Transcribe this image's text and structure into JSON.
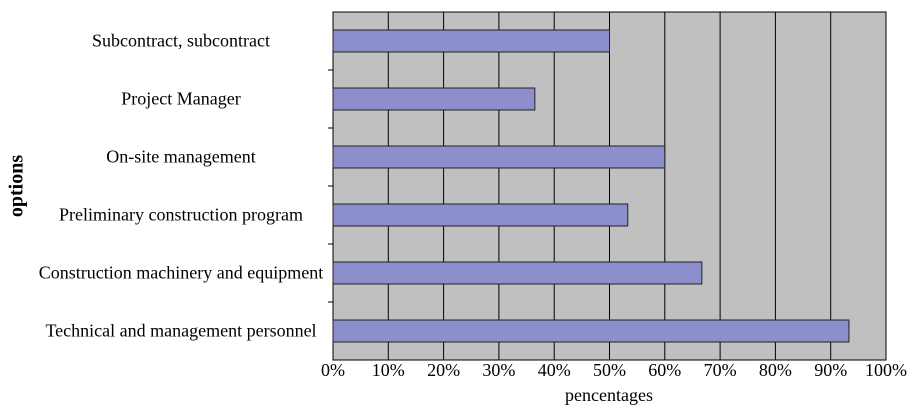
{
  "chart_data": {
    "type": "bar",
    "orientation": "horizontal",
    "categories": [
      "Subcontract, subcontract",
      "Project Manager",
      "On-site management",
      "Preliminary construction program",
      "Construction machinery and equipment",
      "Technical and management personnel"
    ],
    "values": [
      50,
      36.5,
      60,
      53.3,
      66.7,
      93.3
    ],
    "color": "#8c8fcc",
    "xlim": [
      0,
      100
    ],
    "xticks": [
      {
        "value": 0,
        "label": "0%"
      },
      {
        "value": 10,
        "label": "10%"
      },
      {
        "value": 20,
        "label": "20%"
      },
      {
        "value": 30,
        "label": "30%"
      },
      {
        "value": 40,
        "label": "40%"
      },
      {
        "value": 50,
        "label": "50%"
      },
      {
        "value": 60,
        "label": "60%"
      },
      {
        "value": 70,
        "label": "70%"
      },
      {
        "value": 80,
        "label": "80%"
      },
      {
        "value": 90,
        "label": "90%"
      },
      {
        "value": 100,
        "label": "100%"
      }
    ],
    "grid": true,
    "x_label": "pencentages",
    "y_label": "options"
  }
}
